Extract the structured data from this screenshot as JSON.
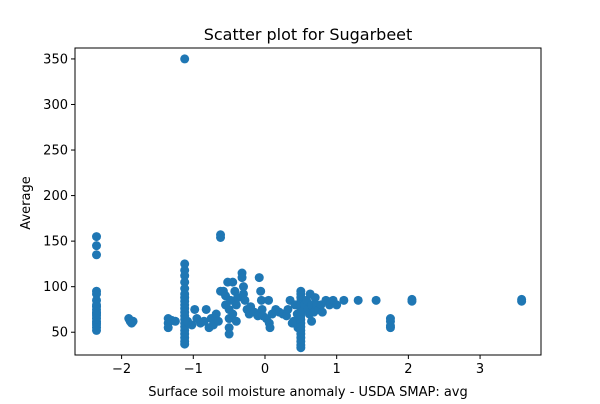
{
  "chart_data": {
    "type": "scatter",
    "title": "Scatter plot for Sugarbeet",
    "xlabel": "Surface soil moisture anomaly  - USDA SMAP: avg",
    "ylabel": "Average",
    "xlim": [
      -2.65,
      3.85
    ],
    "ylim": [
      25,
      362
    ],
    "xticks": [
      -2,
      -1,
      0,
      1,
      2,
      3
    ],
    "xtick_labels": [
      "−2",
      "−1",
      "0",
      "1",
      "2",
      "3"
    ],
    "yticks": [
      50,
      100,
      150,
      200,
      250,
      300,
      350
    ],
    "ytick_labels": [
      "50",
      "100",
      "150",
      "200",
      "250",
      "300",
      "350"
    ],
    "grid": false,
    "marker_color": "#1f77b4",
    "series": [
      {
        "points": [
          [
            -2.35,
            155
          ],
          [
            -2.35,
            145
          ],
          [
            -2.35,
            135
          ],
          [
            -2.35,
            95
          ],
          [
            -2.35,
            92
          ],
          [
            -2.35,
            85
          ],
          [
            -2.35,
            80
          ],
          [
            -2.35,
            78
          ],
          [
            -2.35,
            75
          ],
          [
            -2.35,
            72
          ],
          [
            -2.35,
            70
          ],
          [
            -2.35,
            68
          ],
          [
            -2.35,
            65
          ],
          [
            -2.35,
            62
          ],
          [
            -2.35,
            60
          ],
          [
            -2.35,
            58
          ],
          [
            -2.35,
            55
          ],
          [
            -2.35,
            52
          ],
          [
            -1.9,
            65
          ],
          [
            -1.88,
            62
          ],
          [
            -1.86,
            60
          ],
          [
            -1.84,
            62
          ],
          [
            -1.35,
            65
          ],
          [
            -1.35,
            60
          ],
          [
            -1.35,
            55
          ],
          [
            -1.3,
            63
          ],
          [
            -1.25,
            62
          ],
          [
            -1.12,
            350
          ],
          [
            -1.12,
            125
          ],
          [
            -1.12,
            118
          ],
          [
            -1.12,
            112
          ],
          [
            -1.12,
            105
          ],
          [
            -1.12,
            98
          ],
          [
            -1.12,
            92
          ],
          [
            -1.12,
            88
          ],
          [
            -1.12,
            84
          ],
          [
            -1.12,
            80
          ],
          [
            -1.12,
            76
          ],
          [
            -1.12,
            72
          ],
          [
            -1.12,
            68
          ],
          [
            -1.12,
            64
          ],
          [
            -1.12,
            60
          ],
          [
            -1.12,
            56
          ],
          [
            -1.12,
            52
          ],
          [
            -1.12,
            48
          ],
          [
            -1.12,
            44
          ],
          [
            -1.12,
            40
          ],
          [
            -1.12,
            37
          ],
          [
            -1.08,
            62
          ],
          [
            -1.02,
            58
          ],
          [
            -0.98,
            75
          ],
          [
            -0.95,
            65
          ],
          [
            -0.9,
            60
          ],
          [
            -0.85,
            62
          ],
          [
            -0.82,
            75
          ],
          [
            -0.78,
            55
          ],
          [
            -0.75,
            65
          ],
          [
            -0.72,
            58
          ],
          [
            -0.68,
            70
          ],
          [
            -0.65,
            62
          ],
          [
            -0.62,
            157
          ],
          [
            -0.62,
            154
          ],
          [
            -0.62,
            95
          ],
          [
            -0.58,
            95
          ],
          [
            -0.55,
            90
          ],
          [
            -0.55,
            80
          ],
          [
            -0.52,
            105
          ],
          [
            -0.5,
            75
          ],
          [
            -0.5,
            65
          ],
          [
            -0.5,
            55
          ],
          [
            -0.5,
            48
          ],
          [
            -0.48,
            85
          ],
          [
            -0.45,
            105
          ],
          [
            -0.45,
            70
          ],
          [
            -0.42,
            95
          ],
          [
            -0.4,
            80
          ],
          [
            -0.4,
            62
          ],
          [
            -0.38,
            88
          ],
          [
            -0.32,
            115
          ],
          [
            -0.32,
            110
          ],
          [
            -0.3,
            100
          ],
          [
            -0.3,
            92
          ],
          [
            -0.28,
            85
          ],
          [
            -0.25,
            75
          ],
          [
            -0.22,
            70
          ],
          [
            -0.2,
            78
          ],
          [
            -0.15,
            72
          ],
          [
            -0.1,
            68
          ],
          [
            -0.08,
            110
          ],
          [
            -0.06,
            95
          ],
          [
            -0.05,
            85
          ],
          [
            -0.04,
            75
          ],
          [
            -0.03,
            68
          ],
          [
            0.02,
            65
          ],
          [
            0.05,
            85
          ],
          [
            0.06,
            60
          ],
          [
            0.07,
            55
          ],
          [
            0.1,
            70
          ],
          [
            0.15,
            75
          ],
          [
            0.2,
            72
          ],
          [
            0.25,
            70
          ],
          [
            0.3,
            68
          ],
          [
            0.32,
            75
          ],
          [
            0.35,
            85
          ],
          [
            0.38,
            60
          ],
          [
            0.4,
            62
          ],
          [
            0.42,
            80
          ],
          [
            0.45,
            70
          ],
          [
            0.46,
            55
          ],
          [
            0.48,
            65
          ],
          [
            0.5,
            95
          ],
          [
            0.5,
            92
          ],
          [
            0.5,
            88
          ],
          [
            0.5,
            84
          ],
          [
            0.5,
            80
          ],
          [
            0.5,
            76
          ],
          [
            0.5,
            72
          ],
          [
            0.5,
            68
          ],
          [
            0.5,
            64
          ],
          [
            0.5,
            60
          ],
          [
            0.5,
            56
          ],
          [
            0.5,
            52
          ],
          [
            0.5,
            48
          ],
          [
            0.5,
            44
          ],
          [
            0.5,
            40
          ],
          [
            0.5,
            36
          ],
          [
            0.5,
            33
          ],
          [
            0.55,
            80
          ],
          [
            0.58,
            85
          ],
          [
            0.6,
            75
          ],
          [
            0.62,
            70
          ],
          [
            0.63,
            92
          ],
          [
            0.65,
            80
          ],
          [
            0.65,
            62
          ],
          [
            0.68,
            72
          ],
          [
            0.7,
            88
          ],
          [
            0.72,
            80
          ],
          [
            0.75,
            75
          ],
          [
            0.78,
            80
          ],
          [
            0.8,
            72
          ],
          [
            0.85,
            85
          ],
          [
            0.9,
            80
          ],
          [
            0.95,
            85
          ],
          [
            1.0,
            80
          ],
          [
            1.1,
            85
          ],
          [
            1.3,
            85
          ],
          [
            1.55,
            85
          ],
          [
            1.75,
            65
          ],
          [
            1.75,
            62
          ],
          [
            1.75,
            57
          ],
          [
            1.75,
            55
          ],
          [
            2.05,
            86
          ],
          [
            2.05,
            84
          ],
          [
            3.58,
            86
          ],
          [
            3.58,
            84
          ]
        ]
      }
    ]
  }
}
